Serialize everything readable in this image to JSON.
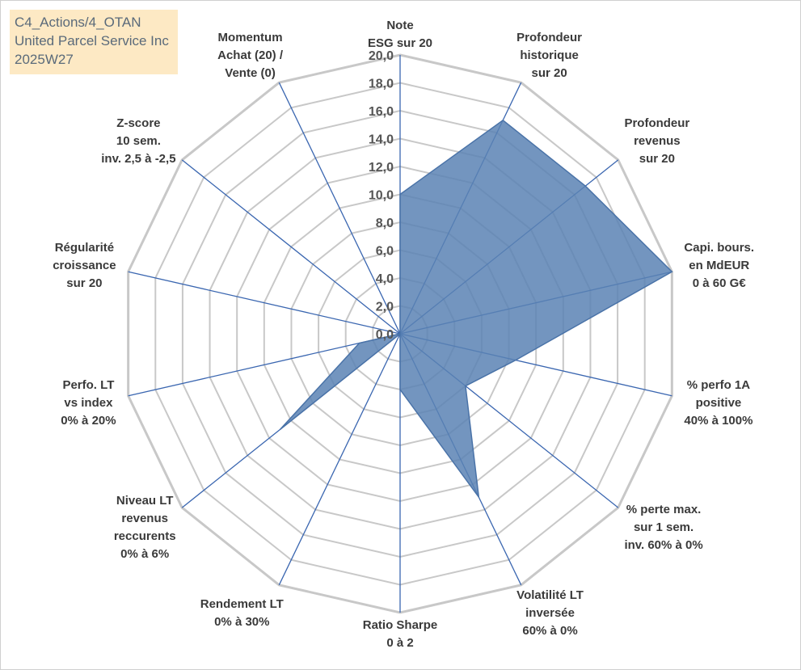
{
  "title_box": {
    "line1": "C4_Actions/4_OTAN",
    "line2": "United Parcel Service Inc",
    "line3": "2025W27"
  },
  "chart_data": {
    "type": "radar",
    "r_range": [
      0,
      20
    ],
    "r_ticks": [
      "0,0",
      "2,0",
      "4,0",
      "6,0",
      "8,0",
      "10,0",
      "12,0",
      "14,0",
      "16,0",
      "18,0",
      "20,0"
    ],
    "axes": [
      {
        "label": [
          "Note",
          "ESG sur 20"
        ],
        "value": 10.0
      },
      {
        "label": [
          "Profondeur",
          "historique",
          "sur 20"
        ],
        "value": 17.0
      },
      {
        "label": [
          "Profondeur",
          "revenus",
          "sur 20"
        ],
        "value": 17.0
      },
      {
        "label": [
          "Capi. bours.",
          "en MdEUR",
          "0 à 60 G€"
        ],
        "value": 20.0
      },
      {
        "label": [
          "% perfo 1A",
          "positive",
          "40% à 100%"
        ],
        "value": 8.5
      },
      {
        "label": [
          "% perte max.",
          "sur 1 sem.",
          "inv. 60% à 0%"
        ],
        "value": 6.0
      },
      {
        "label": [
          "Volatilité LT",
          "inversée",
          "60% à 0%"
        ],
        "value": 13.0
      },
      {
        "label": [
          "Ratio Sharpe",
          "0 à 2"
        ],
        "value": 4.0
      },
      {
        "label": [
          "Rendement LT",
          "0% à 30%"
        ],
        "value": 0.0
      },
      {
        "label": [
          "Niveau LT",
          "revenus",
          "reccurents",
          "0% à 6%"
        ],
        "value": 11.0
      },
      {
        "label": [
          "Perfo. LT",
          "vs index",
          "0% à 20%"
        ],
        "value": 3.0
      },
      {
        "label": [
          "Régularité",
          "croissance",
          "sur 20"
        ],
        "value": 0.0
      },
      {
        "label": [
          "Z-score",
          "10 sem.",
          "inv. 2,5 à -2,5"
        ],
        "value": 0.0
      },
      {
        "label": [
          "Momentum",
          "Achat (20) /",
          "Vente (0)"
        ],
        "value": 0.0
      }
    ],
    "grid": true,
    "colors": {
      "fill": "#5b82b4",
      "stroke": "#4a73a8",
      "spoke": "#3a66b0",
      "grid": "#c8c8c8"
    }
  }
}
